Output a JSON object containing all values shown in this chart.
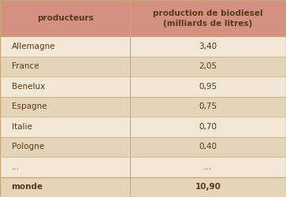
{
  "col1_header": "producteurs",
  "col2_header": "production de biodiesel\n(milliards de litres)",
  "rows": [
    [
      "Allemagne",
      "3,40"
    ],
    [
      "France",
      "2,05"
    ],
    [
      "Benelux",
      "0,95"
    ],
    [
      "Espagne",
      "0,75"
    ],
    [
      "Italie",
      "0,70"
    ],
    [
      "Pologne",
      "0,40"
    ],
    [
      "...",
      "..."
    ],
    [
      "monde",
      "10,90"
    ]
  ],
  "header_bg": "#d49080",
  "row_bg_light": "#f2e8d5",
  "row_bg_dark": "#e5d5b8",
  "text_color": "#5a3a1a",
  "border_color": "#c8a878",
  "fig_bg": "#f2e8d5",
  "col_split": 0.455,
  "header_fontsize": 7.5,
  "row_fontsize": 7.5
}
